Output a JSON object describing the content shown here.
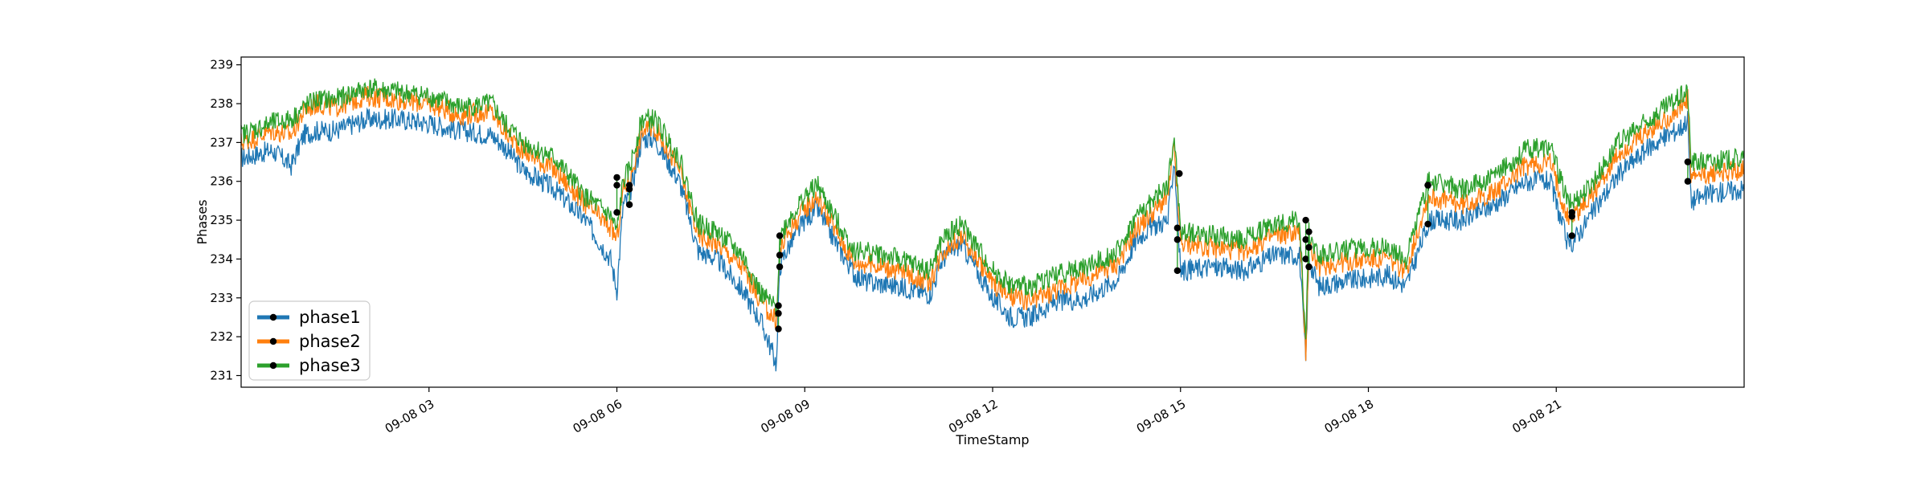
{
  "chart_data": {
    "type": "line",
    "title": "",
    "xlabel": "TimeStamp",
    "ylabel": "Phases",
    "ylim": [
      230.7,
      239.2
    ],
    "xlim_hours": [
      0,
      24
    ],
    "x_ticks": [
      {
        "hour": 3,
        "label": "09-08 03"
      },
      {
        "hour": 6,
        "label": "09-08 06"
      },
      {
        "hour": 9,
        "label": "09-08 09"
      },
      {
        "hour": 12,
        "label": "09-08 12"
      },
      {
        "hour": 15,
        "label": "09-08 15"
      },
      {
        "hour": 18,
        "label": "09-08 18"
      },
      {
        "hour": 21,
        "label": "09-08 21"
      }
    ],
    "y_ticks": [
      231,
      232,
      233,
      234,
      235,
      236,
      237,
      238,
      239
    ],
    "grid": false,
    "legend": "lower-left",
    "colors": {
      "phase1": "#1f77b4",
      "phase2": "#ff7f0e",
      "phase3": "#2ca02c",
      "marker": "#000000"
    },
    "x": [
      0.0,
      0.5,
      0.8,
      1.0,
      1.2,
      1.5,
      2.0,
      2.5,
      3.0,
      3.5,
      4.0,
      4.2,
      4.5,
      5.0,
      5.5,
      5.9,
      6.0,
      6.1,
      6.2,
      6.4,
      6.6,
      7.0,
      7.3,
      7.6,
      8.0,
      8.3,
      8.55,
      8.6,
      8.7,
      9.0,
      9.2,
      9.5,
      9.8,
      10.0,
      10.5,
      11.0,
      11.2,
      11.5,
      12.0,
      12.3,
      12.6,
      13.0,
      13.5,
      14.0,
      14.3,
      14.5,
      14.8,
      14.9,
      15.0,
      15.5,
      16.0,
      16.5,
      16.9,
      17.0,
      17.05,
      17.2,
      17.5,
      18.0,
      18.3,
      18.6,
      18.95,
      19.0,
      19.5,
      20.0,
      20.5,
      20.9,
      21.2,
      21.5,
      22.0,
      22.5,
      23.0,
      23.1,
      23.15,
      23.5,
      24.0
    ],
    "series": [
      {
        "name": "phase1",
        "values": [
          236.6,
          236.8,
          236.4,
          237.2,
          237.3,
          237.3,
          237.6,
          237.6,
          237.5,
          237.3,
          237.2,
          236.9,
          236.3,
          235.8,
          235.0,
          234.0,
          233.2,
          235.4,
          235.6,
          237.1,
          237.1,
          236.0,
          234.2,
          234.0,
          233.2,
          232.4,
          231.3,
          233.8,
          234.2,
          235.0,
          235.3,
          234.4,
          233.6,
          233.4,
          233.3,
          233.1,
          234.0,
          234.4,
          233.0,
          232.5,
          232.5,
          232.9,
          233.0,
          233.5,
          234.5,
          234.8,
          235.0,
          236.6,
          233.7,
          233.8,
          233.7,
          234.1,
          234.1,
          231.4,
          234.0,
          233.3,
          233.4,
          233.5,
          233.6,
          233.3,
          234.9,
          235.0,
          235.0,
          235.4,
          236.0,
          236.0,
          234.3,
          235.0,
          236.2,
          236.9,
          237.4,
          237.6,
          235.5,
          235.7,
          235.8
        ]
      },
      {
        "name": "phase2",
        "values": [
          237.0,
          237.3,
          237.2,
          237.8,
          238.0,
          237.9,
          238.2,
          238.1,
          238.0,
          237.7,
          237.8,
          237.3,
          236.8,
          236.3,
          235.4,
          234.8,
          234.5,
          235.8,
          236.0,
          237.3,
          237.4,
          236.3,
          234.6,
          234.4,
          233.8,
          232.9,
          232.4,
          234.2,
          234.6,
          235.3,
          235.6,
          234.7,
          233.9,
          233.9,
          233.7,
          233.4,
          234.2,
          234.6,
          233.4,
          233.0,
          232.9,
          233.2,
          233.5,
          233.9,
          234.8,
          235.1,
          235.6,
          236.9,
          234.4,
          234.3,
          234.2,
          234.6,
          234.7,
          231.6,
          234.4,
          233.8,
          233.9,
          234.0,
          234.0,
          233.7,
          235.6,
          235.6,
          235.4,
          235.7,
          236.4,
          236.5,
          235.0,
          235.5,
          236.7,
          237.3,
          237.9,
          238.1,
          236.1,
          236.2,
          236.3
        ]
      },
      {
        "name": "phase3",
        "values": [
          237.2,
          237.5,
          237.6,
          237.9,
          238.1,
          238.1,
          238.4,
          238.3,
          238.2,
          237.9,
          238.0,
          237.5,
          237.0,
          236.6,
          235.6,
          235.1,
          234.7,
          236.0,
          236.3,
          237.6,
          237.6,
          236.6,
          234.9,
          234.7,
          234.1,
          233.1,
          232.7,
          234.5,
          234.9,
          235.6,
          235.9,
          235.0,
          234.2,
          234.2,
          234.0,
          233.7,
          234.5,
          234.9,
          233.7,
          233.3,
          233.3,
          233.6,
          233.8,
          234.2,
          235.1,
          235.4,
          235.9,
          237.2,
          234.7,
          234.6,
          234.5,
          234.9,
          235.0,
          231.8,
          234.7,
          234.1,
          234.2,
          234.3,
          234.3,
          234.0,
          236.0,
          236.0,
          235.8,
          236.1,
          236.8,
          236.9,
          235.4,
          235.8,
          237.0,
          237.6,
          238.2,
          238.3,
          236.5,
          236.5,
          236.6
        ]
      }
    ],
    "markers": [
      {
        "hour": 6.0,
        "phase1": 235.2,
        "phase2": 235.9,
        "phase3": 236.1
      },
      {
        "hour": 6.2,
        "phase1": 235.4,
        "phase2": 235.8,
        "phase3": 235.9
      },
      {
        "hour": 8.58,
        "phase1": 232.2,
        "phase2": 232.6,
        "phase3": 232.8
      },
      {
        "hour": 8.6,
        "phase1": 233.8,
        "phase2": 234.1,
        "phase3": 234.6
      },
      {
        "hour": 14.95,
        "phase1": 233.7,
        "phase2": 234.5,
        "phase3": 234.8
      },
      {
        "hour": 14.98,
        "phase1": 236.2,
        "phase2": 236.2,
        "phase3": 236.2
      },
      {
        "hour": 17.0,
        "phase1": 234.0,
        "phase2": 234.5,
        "phase3": 235.0
      },
      {
        "hour": 17.05,
        "phase1": 233.8,
        "phase2": 234.3,
        "phase3": 234.7
      },
      {
        "hour": 18.95,
        "phase1": 234.9,
        "phase2": 235.9,
        "phase3": 235.9
      },
      {
        "hour": 21.25,
        "phase1": 234.6,
        "phase2": 235.1,
        "phase3": 235.2
      },
      {
        "hour": 23.1,
        "phase1": 236.0,
        "phase2": 236.5,
        "phase3": 236.5
      }
    ]
  }
}
